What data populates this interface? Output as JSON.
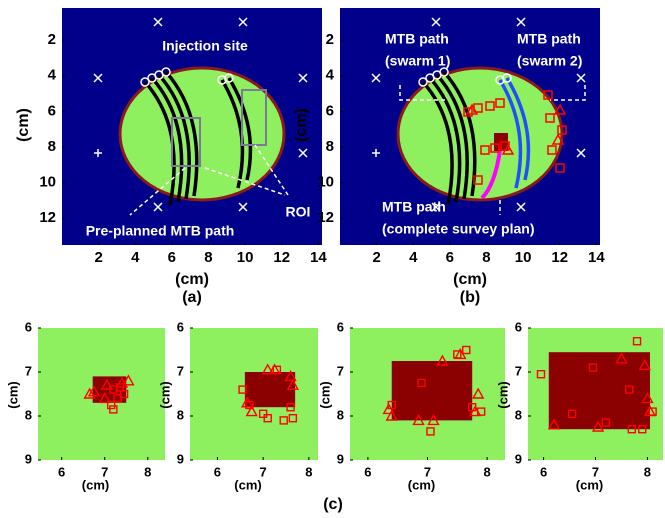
{
  "chart_data": [
    {
      "type": "map",
      "label": "(a)",
      "xlabel": "(cm)",
      "ylabel": "(cm)",
      "xlim": [
        0,
        14.2
      ],
      "ylim": [
        13.5,
        0.2
      ],
      "xticks": [
        2,
        4,
        6,
        8,
        10,
        12,
        14
      ],
      "yticks": [
        2,
        4,
        6,
        8,
        10,
        12
      ],
      "annotations": [
        "Injection site",
        "Pre-planned MTB path",
        "ROI"
      ]
    },
    {
      "type": "map",
      "label": "(b)",
      "xlabel": "(cm)",
      "ylabel": "(cm)",
      "xlim": [
        0,
        14.2
      ],
      "ylim": [
        13.5,
        0.2
      ],
      "xticks": [
        2,
        4,
        6,
        8,
        10,
        12,
        14
      ],
      "yticks": [
        2,
        4,
        6,
        8,
        10,
        12
      ],
      "annotations": [
        "MTB path",
        "(swarm 1)",
        "MTB path",
        "(swarm 2)",
        "MTB path",
        "(complete survey plan)"
      ]
    },
    {
      "type": "scatter",
      "xlabel": "(cm)",
      "ylabel": "(cm)",
      "xlim": [
        5.45,
        8.4
      ],
      "ylim": [
        9,
        6
      ],
      "xticks": [
        6,
        7,
        8
      ],
      "yticks": [
        6,
        7,
        8,
        9
      ],
      "background": "#8ff05f",
      "region": {
        "x": [
          6.72,
          7.5
        ],
        "y": [
          7.1,
          7.7
        ],
        "color": "#8b0000"
      },
      "series": [
        {
          "marker": "triangle",
          "color": "#ff0000",
          "x": [
            6.65,
            6.75,
            7.05,
            7.4,
            7.55,
            7.0
          ],
          "y": [
            7.5,
            7.45,
            7.3,
            7.25,
            7.2,
            7.6
          ]
        },
        {
          "marker": "square",
          "color": "#ff0000",
          "x": [
            7.2,
            7.3,
            7.15,
            7.2,
            7.45,
            7.35
          ],
          "y": [
            7.4,
            7.6,
            7.75,
            7.85,
            7.5,
            7.35
          ]
        }
      ]
    },
    {
      "type": "scatter",
      "xlabel": "(cm)",
      "ylabel": "(cm)",
      "xlim": [
        5.4,
        8.2
      ],
      "ylim": [
        9,
        6
      ],
      "xticks": [
        6,
        7,
        8
      ],
      "yticks": [
        6,
        7,
        8,
        9
      ],
      "background": "#8ff05f",
      "region": {
        "x": [
          6.6,
          7.7
        ],
        "y": [
          7.0,
          7.8
        ],
        "color": "#8b0000"
      },
      "series": [
        {
          "marker": "triangle",
          "color": "#ff0000",
          "x": [
            6.65,
            6.75,
            7.1,
            7.25,
            7.6,
            7.65
          ],
          "y": [
            7.7,
            7.9,
            6.95,
            6.95,
            7.1,
            7.3
          ]
        },
        {
          "marker": "square",
          "color": "#ff0000",
          "x": [
            6.55,
            6.7,
            7.0,
            7.1,
            7.3,
            7.6,
            7.65,
            7.45
          ],
          "y": [
            7.4,
            7.75,
            7.95,
            8.05,
            6.95,
            7.8,
            8.05,
            8.1
          ]
        }
      ]
    },
    {
      "type": "scatter",
      "xlabel": "(cm)",
      "ylabel": "(cm)",
      "xlim": [
        5.7,
        8.3
      ],
      "ylim": [
        9,
        6
      ],
      "xticks": [
        6,
        7,
        8
      ],
      "yticks": [
        6,
        7,
        8,
        9
      ],
      "background": "#8ff05f",
      "region": {
        "x": [
          6.4,
          7.75
        ],
        "y": [
          6.75,
          8.1
        ],
        "color": "#8b0000"
      },
      "series": [
        {
          "marker": "triangle",
          "color": "#ff0000",
          "x": [
            6.35,
            6.4,
            6.85,
            7.25,
            7.55,
            7.85,
            7.8,
            7.1
          ],
          "y": [
            7.85,
            8.0,
            8.1,
            6.75,
            6.6,
            7.5,
            7.9,
            8.1
          ]
        },
        {
          "marker": "square",
          "color": "#ff0000",
          "x": [
            6.4,
            6.9,
            7.05,
            7.5,
            7.65,
            7.9,
            7.75
          ],
          "y": [
            7.75,
            7.25,
            8.35,
            6.6,
            6.5,
            7.9,
            7.8
          ]
        }
      ]
    },
    {
      "type": "scatter",
      "xlabel": "(cm)",
      "ylabel": "(cm)",
      "xlim": [
        5.7,
        8.3
      ],
      "ylim": [
        9,
        6
      ],
      "xticks": [
        6,
        7,
        8
      ],
      "yticks": [
        6,
        7,
        8,
        9
      ],
      "background": "#8ff05f",
      "region": {
        "x": [
          6.1,
          8.05
        ],
        "y": [
          6.55,
          8.3
        ],
        "color": "#8b0000"
      },
      "series": [
        {
          "marker": "triangle",
          "color": "#ff0000",
          "x": [
            6.2,
            7.05,
            7.95,
            8.0,
            8.05,
            7.5
          ],
          "y": [
            8.2,
            8.25,
            6.85,
            7.6,
            7.9,
            6.7
          ]
        },
        {
          "marker": "square",
          "color": "#ff0000",
          "x": [
            5.95,
            6.55,
            6.95,
            7.2,
            7.8,
            8.1,
            7.65,
            7.7,
            7.9
          ],
          "y": [
            7.05,
            7.95,
            6.9,
            8.15,
            6.3,
            7.9,
            7.4,
            8.3,
            8.3
          ]
        }
      ]
    }
  ],
  "figure_label": "(c)"
}
